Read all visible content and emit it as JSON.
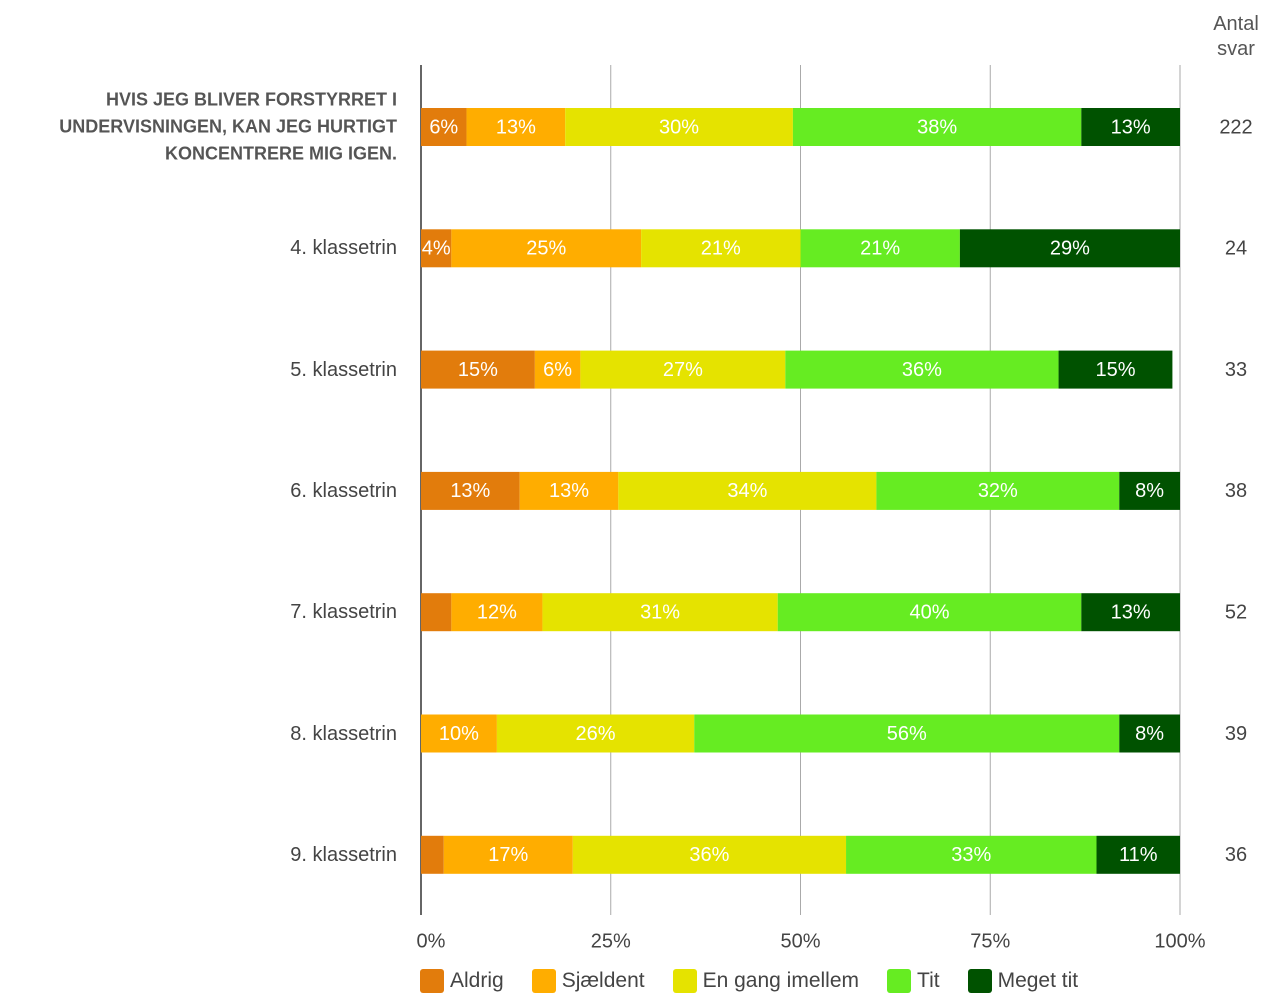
{
  "chart_data": {
    "type": "stacked-barh",
    "categories": [
      "HVIS JEG BLIVER FORSTYRRET I UNDERVISNINGEN, KAN JEG HURTIGT KONCENTRERE MIG IGEN.",
      "4. klassetrin",
      "5. klassetrin",
      "6. klassetrin",
      "7. klassetrin",
      "8. klassetrin",
      "9. klassetrin"
    ],
    "series": [
      {
        "name": "Aldrig",
        "color": "#e27c0c",
        "values": [
          6,
          4,
          15,
          13,
          4,
          0,
          3
        ],
        "value_labels": [
          "6%",
          "4%",
          "15%",
          "13%",
          null,
          null,
          null
        ]
      },
      {
        "name": "Sjældent",
        "color": "#ffad00",
        "values": [
          13,
          25,
          6,
          13,
          12,
          10,
          17
        ],
        "value_labels": [
          "13%",
          "25%",
          "6%",
          "13%",
          "12%",
          "10%",
          "17%"
        ]
      },
      {
        "name": "En gang imellem",
        "color": "#e5e300",
        "values": [
          30,
          21,
          27,
          34,
          31,
          26,
          36
        ],
        "value_labels": [
          "30%",
          "21%",
          "27%",
          "34%",
          "31%",
          "26%",
          "36%"
        ]
      },
      {
        "name": "Tit",
        "color": "#66ec22",
        "values": [
          38,
          21,
          36,
          32,
          40,
          56,
          33
        ],
        "value_labels": [
          "38%",
          "21%",
          "36%",
          "32%",
          "40%",
          "56%",
          "33%"
        ]
      },
      {
        "name": "Meget tit",
        "color": "#005200",
        "values": [
          13,
          29,
          15,
          8,
          13,
          8,
          11
        ],
        "value_labels": [
          "13%",
          "29%",
          "15%",
          "8%",
          "13%",
          "8%",
          "11%"
        ]
      }
    ],
    "xlim": [
      0,
      100
    ],
    "xticks": [
      {
        "value": 0,
        "label": "0%"
      },
      {
        "value": 25,
        "label": "25%"
      },
      {
        "value": 50,
        "label": "50%"
      },
      {
        "value": 75,
        "label": "75%"
      },
      {
        "value": 100,
        "label": "100%"
      }
    ],
    "grid": true,
    "legend": "bottom",
    "antal_svar": {
      "title": "Antal svar",
      "values": [
        222,
        24,
        33,
        38,
        52,
        39,
        36
      ]
    }
  }
}
